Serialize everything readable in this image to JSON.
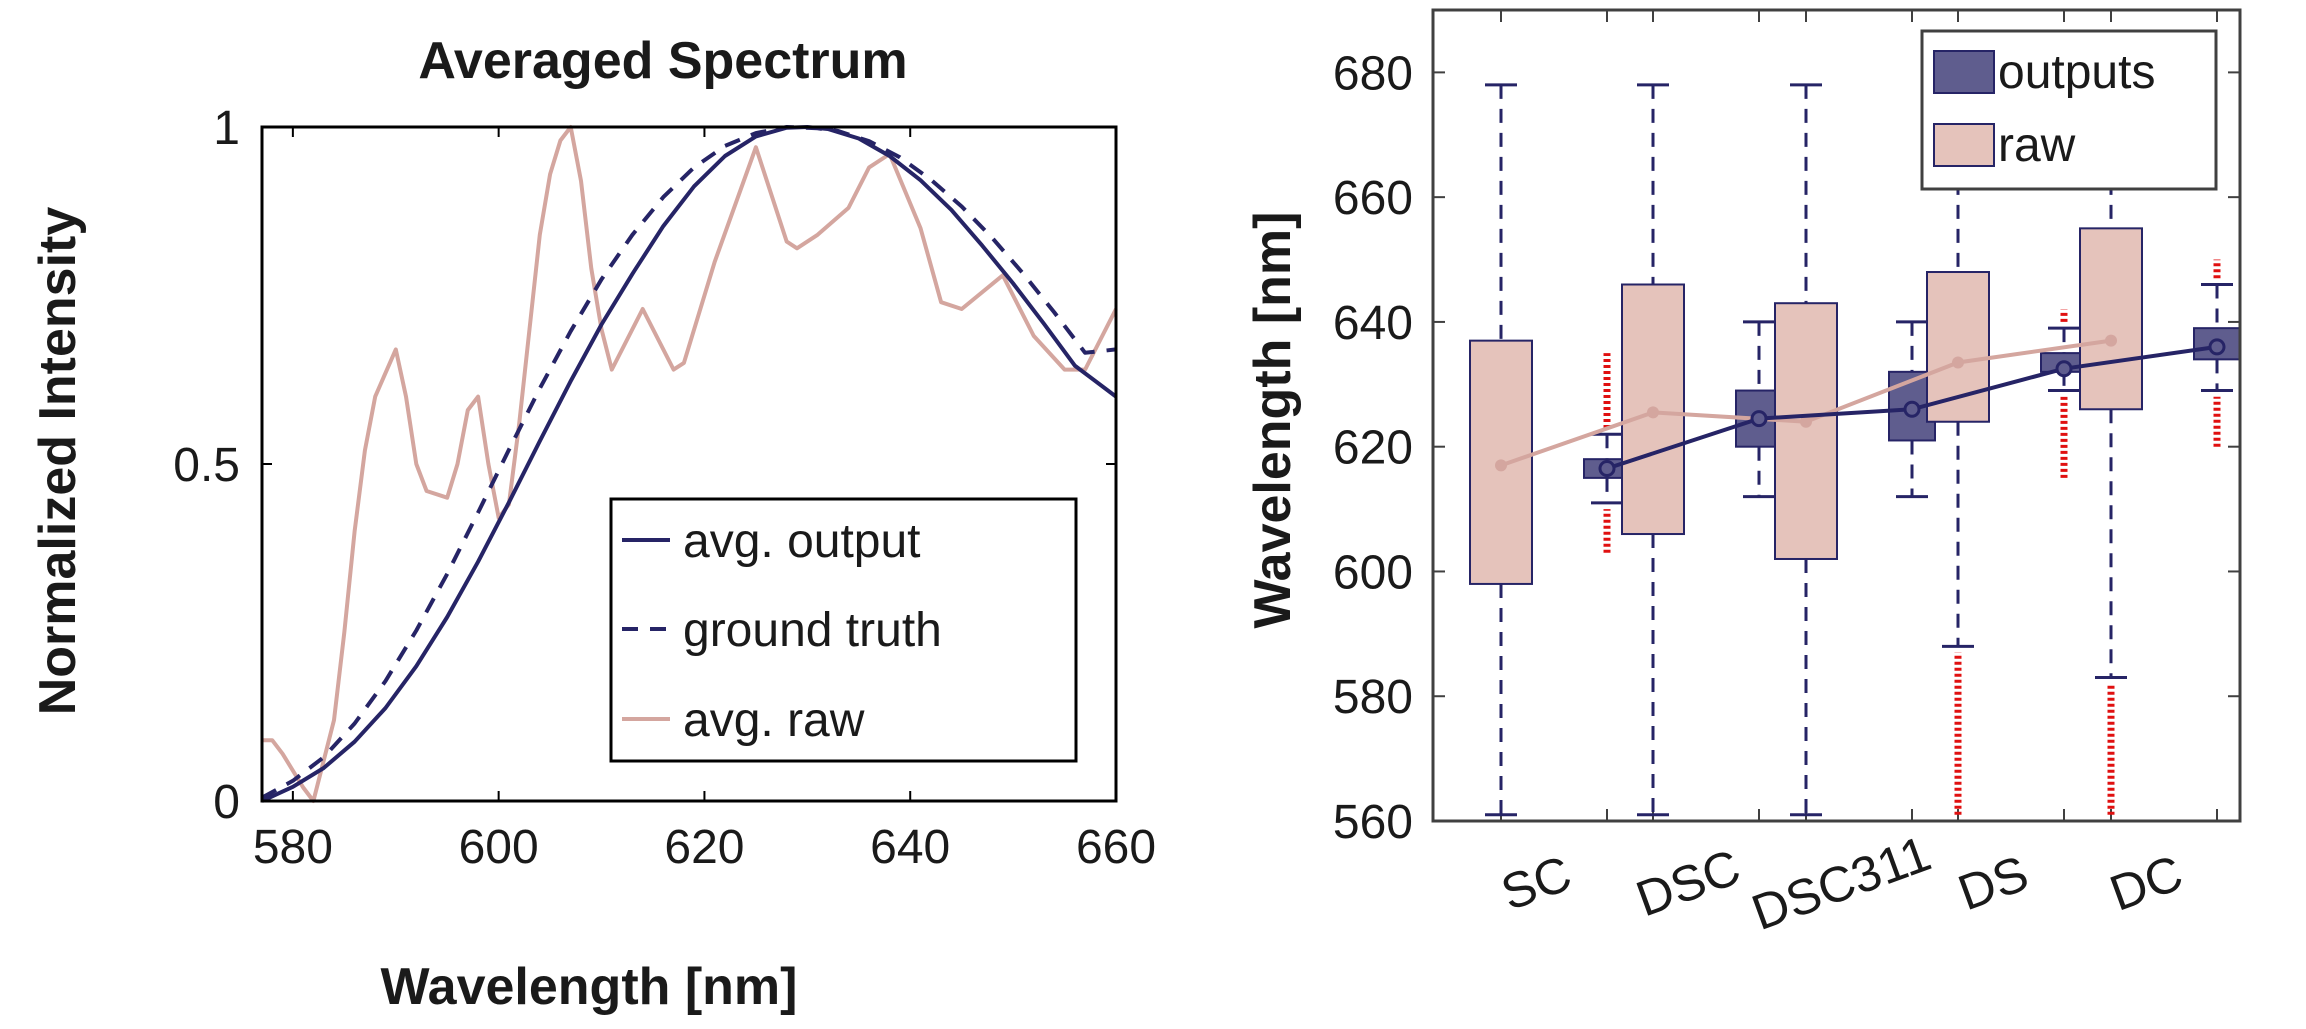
{
  "colors": {
    "output": "#262466",
    "raw": "#d4a69f",
    "raw_box_fill": "#e5c3bb",
    "out_box_fill": "#5f5d8e",
    "outlier": "#e01010",
    "axis": "#404040"
  },
  "chart_data": [
    {
      "type": "line",
      "title": "Averaged Spectrum",
      "xlabel": "Wavelength [nm]",
      "ylabel": "Normalized Intensity",
      "xlim": [
        577,
        660
      ],
      "ylim": [
        0,
        1
      ],
      "xticks": [
        580,
        600,
        620,
        640,
        660
      ],
      "xtick_labels": [
        "580",
        "600",
        "620",
        "640",
        "660"
      ],
      "yticks": [
        0,
        0.5,
        1
      ],
      "ytick_labels": [
        "0",
        "0.5",
        "1"
      ],
      "grid": false,
      "legend_position": "bottom-right",
      "series": [
        {
          "name": "avg. output",
          "style": "solid",
          "x": [
            577,
            580,
            583,
            586,
            589,
            592,
            595,
            598,
            601,
            604,
            607,
            610,
            613,
            616,
            619,
            622,
            625,
            628,
            630,
            632,
            635,
            638,
            641,
            644,
            647,
            650,
            653,
            656,
            660
          ],
          "y": [
            0.0,
            0.021,
            0.049,
            0.088,
            0.138,
            0.2,
            0.273,
            0.355,
            0.443,
            0.534,
            0.623,
            0.707,
            0.782,
            0.853,
            0.912,
            0.957,
            0.986,
            0.999,
            1.0,
            0.997,
            0.983,
            0.957,
            0.921,
            0.877,
            0.824,
            0.768,
            0.708,
            0.646,
            0.6
          ]
        },
        {
          "name": "ground truth",
          "style": "dashed",
          "x": [
            577,
            580,
            583,
            586,
            589,
            592,
            595,
            598,
            601,
            604,
            607,
            610,
            613,
            616,
            619,
            622,
            625,
            628,
            631,
            633,
            636,
            639,
            642,
            645,
            648,
            651,
            654,
            657,
            660
          ],
          "y": [
            0.005,
            0.03,
            0.065,
            0.115,
            0.178,
            0.253,
            0.337,
            0.428,
            0.521,
            0.612,
            0.697,
            0.774,
            0.84,
            0.896,
            0.94,
            0.972,
            0.991,
            1.0,
            0.998,
            0.994,
            0.979,
            0.955,
            0.922,
            0.882,
            0.835,
            0.782,
            0.725,
            0.665,
            0.67
          ]
        },
        {
          "name": "avg. raw",
          "style": "solid",
          "x": [
            577,
            578,
            579,
            581,
            582,
            583,
            584,
            585,
            586,
            587,
            588,
            590,
            591,
            592,
            593,
            595,
            596,
            597,
            598,
            599,
            600,
            601,
            602,
            603,
            604,
            605,
            606,
            607,
            608,
            609,
            610,
            611,
            614,
            617,
            618,
            621,
            625,
            628,
            629,
            631,
            634,
            636,
            638,
            641,
            643,
            645,
            649,
            652,
            655,
            657,
            660
          ],
          "y": [
            0.09,
            0.09,
            0.07,
            0.02,
            0.0,
            0.06,
            0.12,
            0.25,
            0.4,
            0.52,
            0.6,
            0.67,
            0.6,
            0.5,
            0.46,
            0.45,
            0.5,
            0.58,
            0.6,
            0.5,
            0.42,
            0.44,
            0.56,
            0.7,
            0.84,
            0.93,
            0.98,
            1.0,
            0.92,
            0.79,
            0.7,
            0.64,
            0.73,
            0.64,
            0.65,
            0.8,
            0.97,
            0.83,
            0.82,
            0.84,
            0.88,
            0.94,
            0.96,
            0.85,
            0.74,
            0.73,
            0.78,
            0.69,
            0.64,
            0.64,
            0.73
          ]
        }
      ]
    },
    {
      "type": "box",
      "title": "",
      "xlabel": "",
      "ylabel": "Wavelength [nm]",
      "ylim": [
        560,
        690
      ],
      "yticks": [
        560,
        580,
        600,
        620,
        640,
        660,
        680
      ],
      "ytick_labels": [
        "560",
        "580",
        "600",
        "620",
        "640",
        "660",
        "680"
      ],
      "categories": [
        "SC",
        "DSC",
        "DSC311",
        "DS",
        "DC"
      ],
      "grid": false,
      "legend_position": "top-right",
      "series": [
        {
          "name": "raw",
          "boxes": [
            {
              "q1": 598,
              "q3": 637,
              "median": 617,
              "whisker_low": 561,
              "whisker_high": 678,
              "outliers_low": [],
              "outliers_high": []
            },
            {
              "q1": 606,
              "q3": 646,
              "median": 625.5,
              "whisker_low": 561,
              "whisker_high": 678,
              "outliers_low": [],
              "outliers_high": []
            },
            {
              "q1": 602,
              "q3": 643,
              "median": 624,
              "whisker_low": 561,
              "whisker_high": 678,
              "outliers_low": [],
              "outliers_high": []
            },
            {
              "q1": 624,
              "q3": 648,
              "median": 633.5,
              "whisker_low": 588,
              "whisker_high": 678,
              "outliers_low": [
                561,
                587
              ],
              "outliers_high": []
            },
            {
              "q1": 626,
              "q3": 655,
              "median": 637,
              "whisker_low": 583,
              "whisker_high": 678,
              "outliers_low": [
                561,
                582
              ],
              "outliers_high": []
            }
          ],
          "trend": [
            617,
            625.5,
            624,
            633.5,
            637
          ]
        },
        {
          "name": "outputs",
          "boxes": [
            {
              "q1": 615,
              "q3": 618,
              "median": 616.5,
              "whisker_low": 611,
              "whisker_high": 622,
              "outliers_low": [
                603,
                610
              ],
              "outliers_high": [
                623,
                635
              ]
            },
            {
              "q1": 620,
              "q3": 629,
              "median": 624.5,
              "whisker_low": 612,
              "whisker_high": 640,
              "outliers_low": [],
              "outliers_high": []
            },
            {
              "q1": 621,
              "q3": 632,
              "median": 626,
              "whisker_low": 612,
              "whisker_high": 640,
              "outliers_low": [],
              "outliers_high": []
            },
            {
              "q1": 632,
              "q3": 635,
              "median": 632.5,
              "whisker_low": 629,
              "whisker_high": 639,
              "outliers_low": [
                615,
                628
              ],
              "outliers_high": [
                640,
                642
              ]
            },
            {
              "q1": 634,
              "q3": 639,
              "median": 636,
              "whisker_low": 629,
              "whisker_high": 646,
              "outliers_low": [
                620,
                628
              ],
              "outliers_high": [
                647,
                650
              ]
            }
          ],
          "trend": [
            616.5,
            624.5,
            626,
            632.5,
            636
          ]
        }
      ],
      "legend_entries": [
        "outputs",
        "raw"
      ]
    }
  ]
}
